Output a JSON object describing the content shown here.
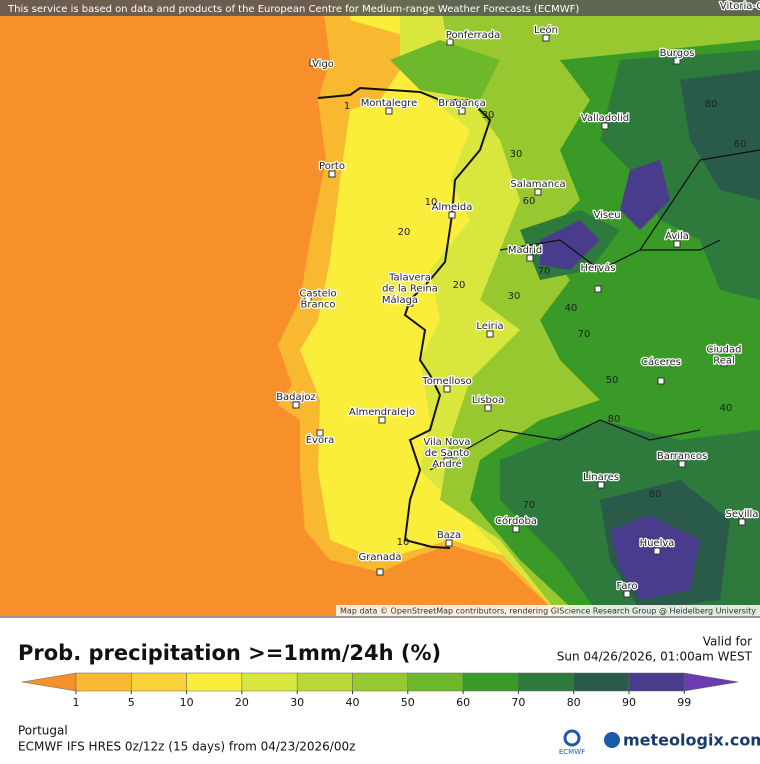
{
  "header": {
    "notice": "This service is based on data and products of the European Centre for Medium-range Weather Forecasts (ECMWF)"
  },
  "map": {
    "cities": [
      {
        "lines": [
          "Vitoria-G"
        ]
      },
      {
        "lines": [
          "León"
        ]
      },
      {
        "lines": [
          "Ponferrada"
        ]
      },
      {
        "lines": [
          "Vigo"
        ]
      },
      {
        "lines": [
          "Burgos"
        ]
      },
      {
        "lines": [
          "Montalegre"
        ]
      },
      {
        "lines": [
          "Bragança"
        ]
      },
      {
        "lines": [
          "Valladolid"
        ]
      },
      {
        "lines": [
          "Porto"
        ]
      },
      {
        "lines": [
          "Salamanca"
        ]
      },
      {
        "lines": [
          "Almeida"
        ]
      },
      {
        "lines": [
          "Viseu"
        ]
      },
      {
        "lines": [
          "Ávila"
        ]
      },
      {
        "lines": [
          "Madrid"
        ]
      },
      {
        "lines": [
          "Hervás"
        ]
      },
      {
        "lines": [
          "Talavera",
          "de la Reina"
        ]
      },
      {
        "lines": [
          "Castelo",
          "Branco"
        ]
      },
      {
        "lines": [
          "Leiria"
        ]
      },
      {
        "lines": [
          "Cáceres"
        ]
      },
      {
        "lines": [
          "Ciudad",
          "Real"
        ]
      },
      {
        "lines": [
          "Tomelloso"
        ]
      },
      {
        "lines": [
          "Badajoz"
        ]
      },
      {
        "lines": [
          "Lisboa"
        ]
      },
      {
        "lines": [
          "Almendralejo"
        ]
      },
      {
        "lines": [
          "Évora"
        ]
      },
      {
        "lines": [
          "Vila Nova",
          "de Santo",
          "André"
        ]
      },
      {
        "lines": [
          "Barrancos"
        ]
      },
      {
        "lines": [
          "Linares"
        ]
      },
      {
        "lines": [
          "Córdoba"
        ]
      },
      {
        "lines": [
          "Sevilla"
        ]
      },
      {
        "lines": [
          "Baza"
        ]
      },
      {
        "lines": [
          "Huelva"
        ]
      },
      {
        "lines": [
          "Granada"
        ]
      },
      {
        "lines": [
          "Faro"
        ]
      },
      {
        "lines": [
          "Málaga"
        ]
      }
    ],
    "contour_labels": [
      "1",
      "30",
      "30",
      "60",
      "10",
      "20",
      "20",
      "30",
      "70",
      "40",
      "70",
      "50",
      "40",
      "80",
      "80",
      "70",
      "10",
      "80",
      "60"
    ],
    "attribution": "Map data © OpenStreetMap contributors, rendering GIScience Research Group @ Heidelberg University"
  },
  "legend": {
    "title": "Prob. precipitation >=1mm/24h (%)",
    "valid_label": "Valid for",
    "valid_time": "Sun 04/26/2026, 01:00am WEST",
    "below_color": "#f7902a",
    "scale": [
      {
        "value": 1,
        "color": "#f8b830"
      },
      {
        "value": 5,
        "color": "#fcd23a"
      },
      {
        "value": 10,
        "color": "#fbee3a"
      },
      {
        "value": 20,
        "color": "#d9e63e"
      },
      {
        "value": 30,
        "color": "#b9d838"
      },
      {
        "value": 40,
        "color": "#98c830"
      },
      {
        "value": 50,
        "color": "#6eb82c"
      },
      {
        "value": 60,
        "color": "#3a9a28"
      },
      {
        "value": 70,
        "color": "#2e7a3c"
      },
      {
        "value": 80,
        "color": "#2a5a4a"
      },
      {
        "value": 90,
        "color": "#4a3c8c"
      },
      {
        "value": 99,
        "color": "#6a3cb0"
      }
    ],
    "region": "Portugal",
    "model": "ECMWF IFS HRES 0z/12z (15 days) from 04/23/2026/00z",
    "ecmwf": "ECMWF",
    "brand": "meteologix.com"
  }
}
